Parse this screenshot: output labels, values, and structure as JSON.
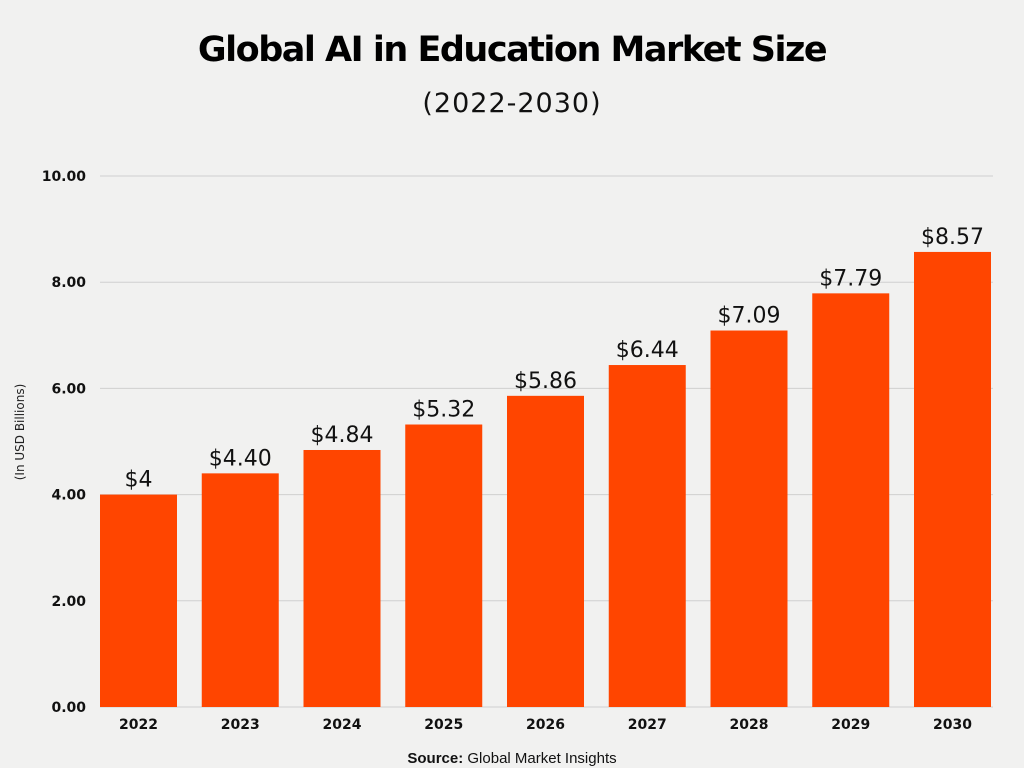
{
  "chart_data": {
    "type": "bar",
    "title": "Global AI in Education Market Size",
    "subtitle": "(2022-2030)",
    "xlabel": "",
    "ylabel": "(In USD Billions)",
    "categories": [
      "2022",
      "2023",
      "2024",
      "2025",
      "2026",
      "2027",
      "2028",
      "2029",
      "2030"
    ],
    "values": [
      4,
      4.4,
      4.84,
      5.32,
      5.86,
      6.44,
      7.09,
      7.79,
      8.57
    ],
    "data_labels": [
      "$4",
      "$4.40",
      "$4.84",
      "$5.32",
      "$5.86",
      "$6.44",
      "$7.09",
      "$7.79",
      "$8.57"
    ],
    "ylim": [
      0,
      10
    ],
    "yticks": [
      "0.00",
      "2.00",
      "4.00",
      "6.00",
      "8.00",
      "10.00"
    ],
    "grid": true,
    "bar_color": "#ff4500",
    "source_label": "Source:",
    "source": "Global Market Insights"
  }
}
